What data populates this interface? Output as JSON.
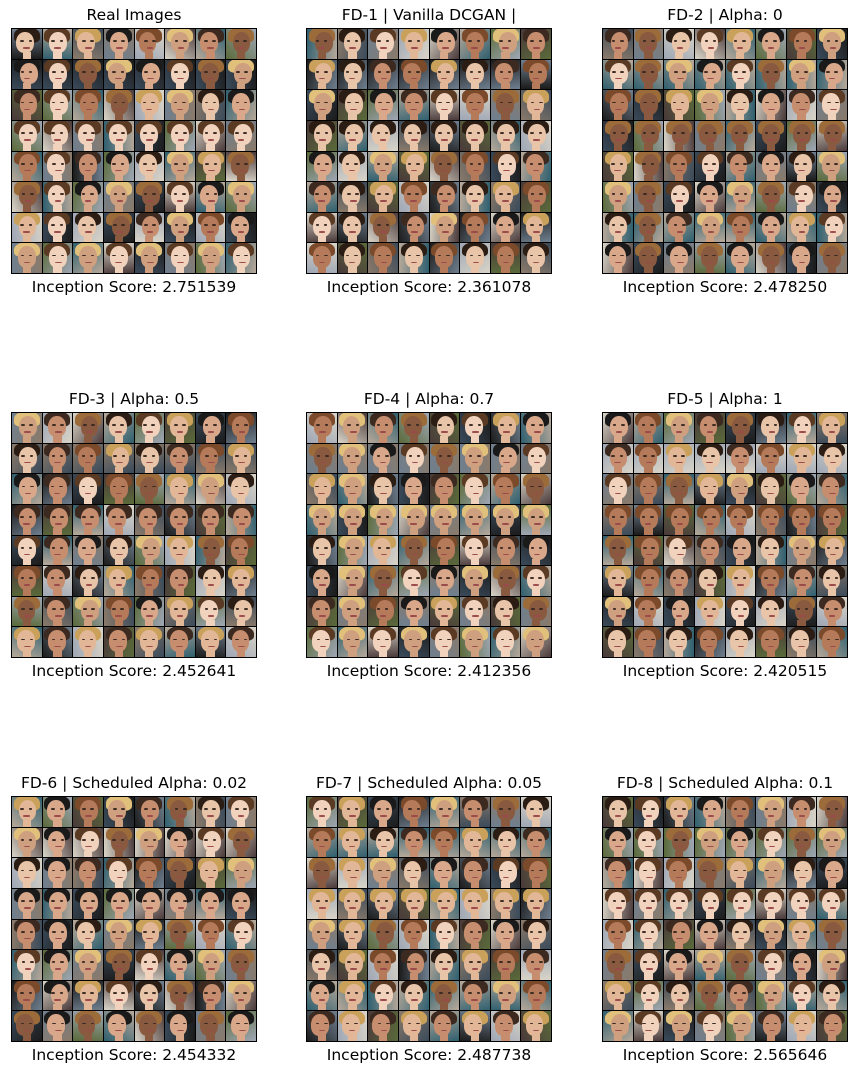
{
  "panels": [
    {
      "title": "Real Images",
      "score_text": "Inception Score: 2.751539"
    },
    {
      "title": "FD-1 | Vanilla DCGAN |",
      "score_text": "Inception Score: 2.361078"
    },
    {
      "title": "FD-2 | Alpha: 0",
      "score_text": "Inception Score: 2.478250"
    },
    {
      "title": "FD-3 | Alpha: 0.5",
      "score_text": "Inception Score: 2.452641"
    },
    {
      "title": "FD-4 | Alpha: 0.7",
      "score_text": "Inception Score: 2.412356"
    },
    {
      "title": "FD-5 | Alpha: 1",
      "score_text": "Inception Score: 2.420515"
    },
    {
      "title": "FD-6 | Scheduled Alpha: 0.02",
      "score_text": "Inception Score: 2.454332"
    },
    {
      "title": "FD-7 | Scheduled Alpha: 0.05",
      "score_text": "Inception Score: 2.487738"
    },
    {
      "title": "FD-8 | Scheduled Alpha: 0.1",
      "score_text": "Inception Score: 2.565646"
    }
  ],
  "grid": {
    "rows": 8,
    "cols": 8
  },
  "colors": {
    "background": "#ffffff",
    "grid_lines": "#000000",
    "skin_tones": [
      "#e8c4a8",
      "#d9a88a",
      "#c68e6f",
      "#f1d2bd",
      "#b47a5a",
      "#8a5a40",
      "#e2b797",
      "#cfa080"
    ],
    "hair_tones": [
      "#2b1d14",
      "#5a3a22",
      "#c9a15a",
      "#1a1a1a",
      "#7a4a2a",
      "#e0c07a",
      "#3c2a20",
      "#9b6b3a"
    ],
    "backdrops": [
      "#1b1b1b",
      "#6f7f8f",
      "#b7a99a",
      "#3a4a5a",
      "#8a7a6a",
      "#d9d4c8",
      "#4a3a3a",
      "#2f5f6f",
      "#9fa7b5",
      "#5a6a3a"
    ]
  }
}
